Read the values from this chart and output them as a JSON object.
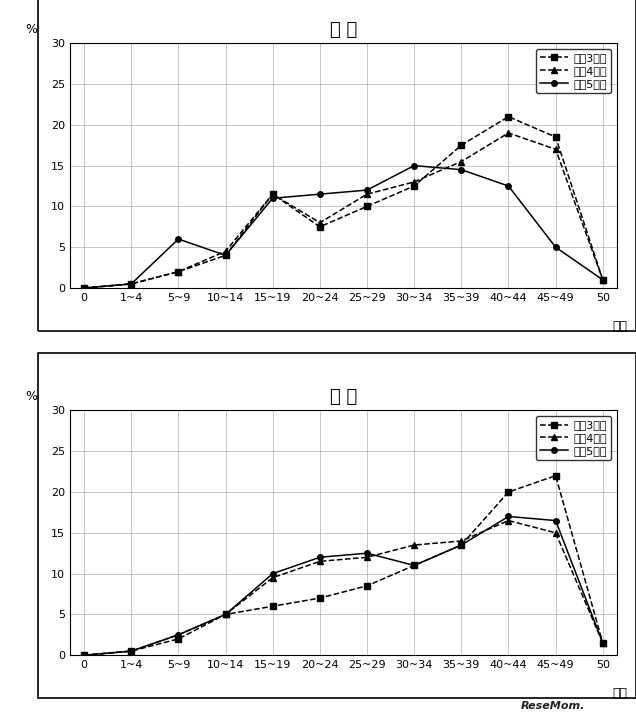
{
  "x_labels": [
    "0",
    "1~4",
    "5~9",
    "10~14",
    "15~19",
    "20~24",
    "25~29",
    "30~34",
    "35~39",
    "40~44",
    "45~49",
    "50"
  ],
  "x_positions": [
    0,
    1,
    2,
    3,
    4,
    5,
    6,
    7,
    8,
    9,
    10,
    11
  ],
  "chart1": {
    "title": "理 科",
    "series": [
      {
        "label": "令和3年度",
        "linestyle": "--",
        "marker": "s",
        "values": [
          0.0,
          0.5,
          2.0,
          4.0,
          11.5,
          7.5,
          10.0,
          12.5,
          17.5,
          21.0,
          18.5,
          1.0
        ]
      },
      {
        "label": "令和4年度",
        "linestyle": "--",
        "marker": "^",
        "values": [
          0.0,
          0.5,
          2.0,
          4.5,
          11.5,
          8.0,
          11.5,
          13.0,
          15.5,
          19.0,
          17.0,
          1.0
        ]
      },
      {
        "label": "令和5年度",
        "linestyle": "-",
        "marker": "o",
        "values": [
          0.0,
          0.5,
          6.0,
          4.0,
          11.0,
          11.5,
          12.0,
          15.0,
          14.5,
          12.5,
          5.0,
          1.0
        ]
      }
    ]
  },
  "chart2": {
    "title": "英 語",
    "series": [
      {
        "label": "令和3年度",
        "linestyle": "--",
        "marker": "s",
        "values": [
          0.0,
          0.5,
          2.0,
          5.0,
          6.0,
          7.0,
          8.5,
          11.0,
          13.5,
          20.0,
          22.0,
          1.5
        ]
      },
      {
        "label": "令和4年度",
        "linestyle": "--",
        "marker": "^",
        "values": [
          0.0,
          0.5,
          2.5,
          5.0,
          9.5,
          11.5,
          12.0,
          13.5,
          14.0,
          16.5,
          15.0,
          1.5
        ]
      },
      {
        "label": "令和5年度",
        "linestyle": "-",
        "marker": "o",
        "values": [
          0.0,
          0.5,
          2.5,
          5.0,
          10.0,
          12.0,
          12.5,
          11.0,
          13.5,
          17.0,
          16.5,
          1.5
        ]
      }
    ]
  },
  "ylim": [
    0,
    30
  ],
  "yticks": [
    0,
    5,
    10,
    15,
    20,
    25,
    30
  ],
  "ylabel": "%",
  "xlabel": "得点",
  "line_color": "#000000",
  "bg_color": "#ffffff",
  "grid_color": "#bbbbbb",
  "legend_fontsize": 8,
  "axis_fontsize": 8,
  "title_fontsize": 13
}
